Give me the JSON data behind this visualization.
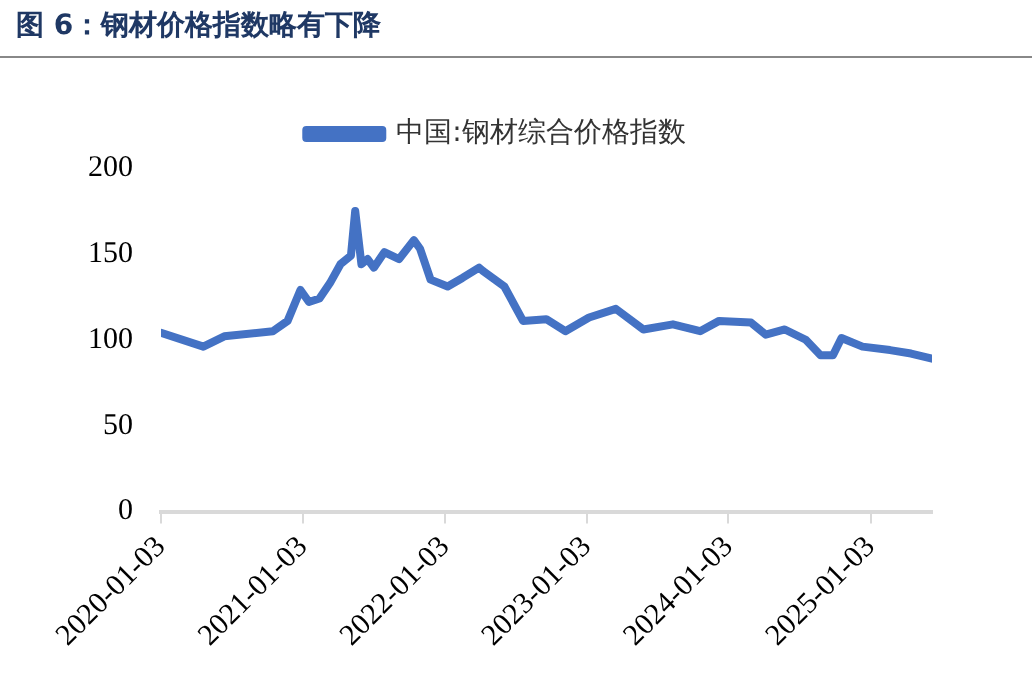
{
  "chart_data": {
    "type": "line",
    "title": "图 6：钢材价格指数略有下降",
    "x": [
      "2020-01-03",
      "2020-04-21",
      "2020-06-14",
      "2020-10-17",
      "2020-11-24",
      "2020-12-27",
      "2021-01-18",
      "2021-02-14",
      "2021-03-13",
      "2021-04-09",
      "2021-05-06",
      "2021-05-17",
      "2021-06-02",
      "2021-06-18",
      "2021-07-04",
      "2021-07-31",
      "2021-09-07",
      "2021-10-15",
      "2021-10-31",
      "2021-11-27",
      "2022-01-10",
      "2022-02-17",
      "2022-04-01",
      "2022-04-11",
      "2022-06-05",
      "2022-07-23",
      "2022-09-21",
      "2022-11-09",
      "2023-01-09",
      "2023-03-19",
      "2023-05-29",
      "2023-08-13",
      "2023-10-22",
      "2023-12-10",
      "2024-03-01",
      "2024-04-08",
      "2024-05-27",
      "2024-07-20",
      "2024-08-27",
      "2024-09-28",
      "2024-10-20",
      "2024-12-13",
      "2025-02-22",
      "2025-04-17",
      "2025-06-10"
    ],
    "series": [
      {
        "name": "中国:钢材综合价格指数",
        "color": "#4472c4",
        "values": [
          104,
          96,
          102,
          105,
          111,
          129,
          122,
          124,
          133,
          144,
          149,
          175,
          144,
          147,
          142,
          151,
          147,
          158,
          153,
          135,
          131,
          136,
          142,
          140,
          131,
          111,
          112,
          105,
          113,
          118,
          106,
          109,
          105,
          111,
          110,
          103,
          106,
          100,
          91,
          91,
          101,
          96,
          94,
          92,
          89
        ]
      }
    ],
    "xlim": [
      "2020-01-03",
      "2025-06-10"
    ],
    "xticks": [
      "2020-01-03",
      "2021-01-03",
      "2022-01-03",
      "2023-01-03",
      "2024-01-03",
      "2025-01-03"
    ],
    "ylim": [
      0,
      200
    ],
    "yticks": [
      0,
      50,
      100,
      150,
      200
    ],
    "grid": false,
    "legend": "top",
    "marker": "none",
    "line_style": "solid"
  }
}
